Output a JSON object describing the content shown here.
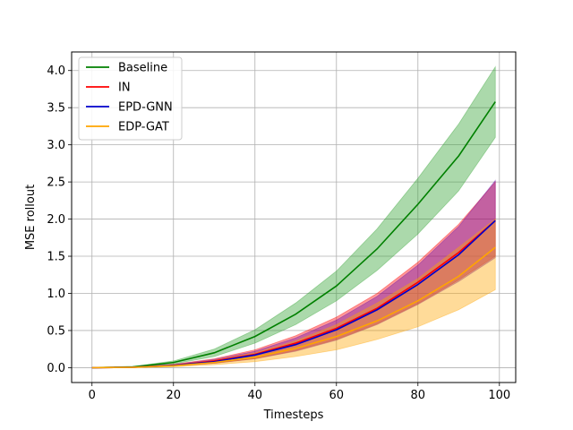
{
  "chart_data": {
    "type": "line",
    "title": "",
    "xlabel": "Timesteps",
    "ylabel": "MSE rollout",
    "xlim": [
      -5,
      104
    ],
    "ylim": [
      -0.2,
      4.25
    ],
    "xticks": [
      0,
      20,
      40,
      60,
      80,
      100
    ],
    "yticks": [
      0.0,
      0.5,
      1.0,
      1.5,
      2.0,
      2.5,
      3.0,
      3.5,
      4.0
    ],
    "xtick_labels": [
      "0",
      "20",
      "40",
      "60",
      "80",
      "100"
    ],
    "ytick_labels": [
      "0.0",
      "0.5",
      "1.0",
      "1.5",
      "2.0",
      "2.5",
      "3.0",
      "3.5",
      "4.0"
    ],
    "grid": true,
    "legend_position": "top-left",
    "x": [
      0,
      10,
      20,
      30,
      40,
      50,
      60,
      70,
      80,
      90,
      99
    ],
    "series": [
      {
        "name": "Baseline",
        "color": "#008000",
        "band_color": "#2ca02c",
        "values": [
          0.0,
          0.01,
          0.07,
          0.2,
          0.42,
          0.72,
          1.1,
          1.6,
          2.2,
          2.85,
          3.58
        ],
        "lower": [
          0.0,
          0.008,
          0.05,
          0.15,
          0.33,
          0.58,
          0.9,
          1.31,
          1.8,
          2.38,
          3.1
        ],
        "upper": [
          0.0,
          0.015,
          0.09,
          0.25,
          0.51,
          0.87,
          1.3,
          1.87,
          2.55,
          3.28,
          4.05
        ]
      },
      {
        "name": "IN",
        "color": "#ff0000",
        "band_color": "#ff0000",
        "values": [
          0.0,
          0.005,
          0.03,
          0.09,
          0.18,
          0.33,
          0.53,
          0.8,
          1.15,
          1.55,
          1.98
        ],
        "lower": [
          0.0,
          0.003,
          0.02,
          0.06,
          0.12,
          0.23,
          0.38,
          0.59,
          0.86,
          1.18,
          1.5
        ],
        "upper": [
          0.0,
          0.008,
          0.045,
          0.12,
          0.24,
          0.43,
          0.68,
          1.0,
          1.42,
          1.93,
          2.5
        ]
      },
      {
        "name": "EPD-GNN",
        "color": "#0000cc",
        "band_color": "#6a0dad",
        "values": [
          0.0,
          0.005,
          0.03,
          0.08,
          0.17,
          0.31,
          0.51,
          0.78,
          1.12,
          1.52,
          1.98
        ],
        "lower": [
          0.0,
          0.003,
          0.02,
          0.06,
          0.12,
          0.22,
          0.37,
          0.58,
          0.85,
          1.16,
          1.48
        ],
        "upper": [
          0.0,
          0.008,
          0.04,
          0.11,
          0.22,
          0.4,
          0.64,
          0.96,
          1.38,
          1.9,
          2.52
        ]
      },
      {
        "name": "EDP-GAT",
        "color": "#ffa500",
        "band_color": "#ffa500",
        "values": [
          0.0,
          0.004,
          0.025,
          0.07,
          0.14,
          0.26,
          0.42,
          0.63,
          0.9,
          1.23,
          1.62
        ],
        "lower": [
          0.0,
          0.002,
          0.013,
          0.04,
          0.08,
          0.15,
          0.24,
          0.38,
          0.55,
          0.78,
          1.05
        ],
        "upper": [
          0.0,
          0.006,
          0.035,
          0.1,
          0.2,
          0.36,
          0.58,
          0.87,
          1.2,
          1.62,
          2.0
        ]
      }
    ]
  }
}
